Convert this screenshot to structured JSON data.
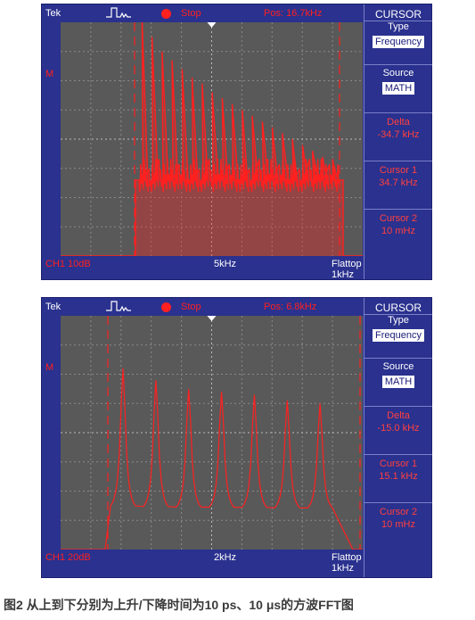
{
  "scopes": [
    {
      "brand": "Tek",
      "trigger_icon": "trigger-waveform-icon",
      "status": "Stop",
      "position": "Pos: 16.7kHz",
      "marker": "M",
      "channel_scale": "CH1 10dB",
      "span": "5kHz",
      "window_label": "Flattop",
      "window_value": "1kHz",
      "menu": {
        "title": "CURSOR",
        "type_label": "Type",
        "type_value": "Frequency",
        "source_label": "Source",
        "source_value": "MATH",
        "delta_label": "Delta",
        "delta_value": "-34.7 kHz",
        "cursor1_label": "Cursor 1",
        "cursor1_value": "34.7 kHz",
        "cursor2_label": "Cursor 2",
        "cursor2_value": "10 mHz"
      },
      "trace": {
        "color": "#ff2020",
        "cursor1_x": 34.7,
        "cursor2_x": 0.01,
        "spectrum_shape": "harmonic-comb",
        "peak_count": 20,
        "peak_heights_div": [
          8.1,
          7.5,
          7.0,
          6.7,
          6.4,
          6.1,
          5.9,
          5.6,
          5.4,
          5.2,
          5.0,
          4.8,
          4.6,
          4.4,
          4.2,
          4.0,
          3.8,
          3.6,
          3.4,
          3.3
        ],
        "noise_floor_div": 2.6
      }
    },
    {
      "brand": "Tek",
      "trigger_icon": "trigger-waveform-icon",
      "status": "Stop",
      "position": "Pos: 6.8kHz",
      "marker": "M",
      "channel_scale": "CH1 20dB",
      "span": "2kHz",
      "window_label": "Flattop",
      "window_value": "1kHz",
      "menu": {
        "title": "CURSOR",
        "type_label": "Type",
        "type_value": "Frequency",
        "source_label": "Source",
        "source_value": "MATH",
        "delta_label": "Delta",
        "delta_value": "-15.0 kHz",
        "cursor1_label": "Cursor 1",
        "cursor1_value": "15.1 kHz",
        "cursor2_label": "Cursor 2",
        "cursor2_value": "10 mHz"
      },
      "trace": {
        "color": "#ff2020",
        "cursor1_x": 15.1,
        "cursor2_x": 0.01,
        "spectrum_shape": "resonant-peaks",
        "peak_count": 7,
        "peak_heights_div": [
          6.2,
          5.8,
          5.5,
          5.4,
          5.3,
          5.1,
          5.0
        ],
        "noise_floor_div": 1.2
      }
    }
  ],
  "caption": "图2 从上到下分别为上升/下降时间为10 ps、10 μs的方波FFT图"
}
